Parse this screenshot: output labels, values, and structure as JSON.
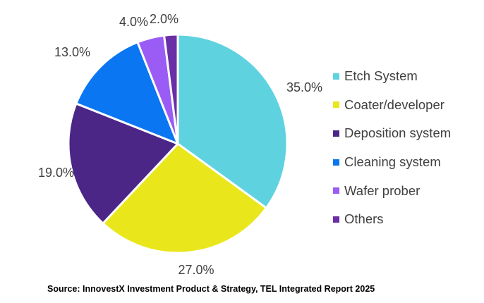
{
  "chart_data": {
    "type": "pie",
    "title": "",
    "legend_position": "right",
    "categories": [
      "Etch System",
      "Coater/developer",
      "Deposition system",
      "Cleaning system",
      "Wafer prober",
      "Others"
    ],
    "values": [
      35.0,
      27.0,
      19.0,
      13.0,
      4.0,
      2.0
    ],
    "value_labels": [
      "35.0%",
      "27.0%",
      "19.0%",
      "13.0%",
      "4.0%",
      "2.0%"
    ],
    "colors": [
      "#5fd2e0",
      "#e9e71b",
      "#4b2687",
      "#0a76f1",
      "#9a5cf5",
      "#6a2fa6"
    ],
    "source": "Source: InnovestX Investment Product & Strategy, TEL Integrated Report 2025"
  }
}
